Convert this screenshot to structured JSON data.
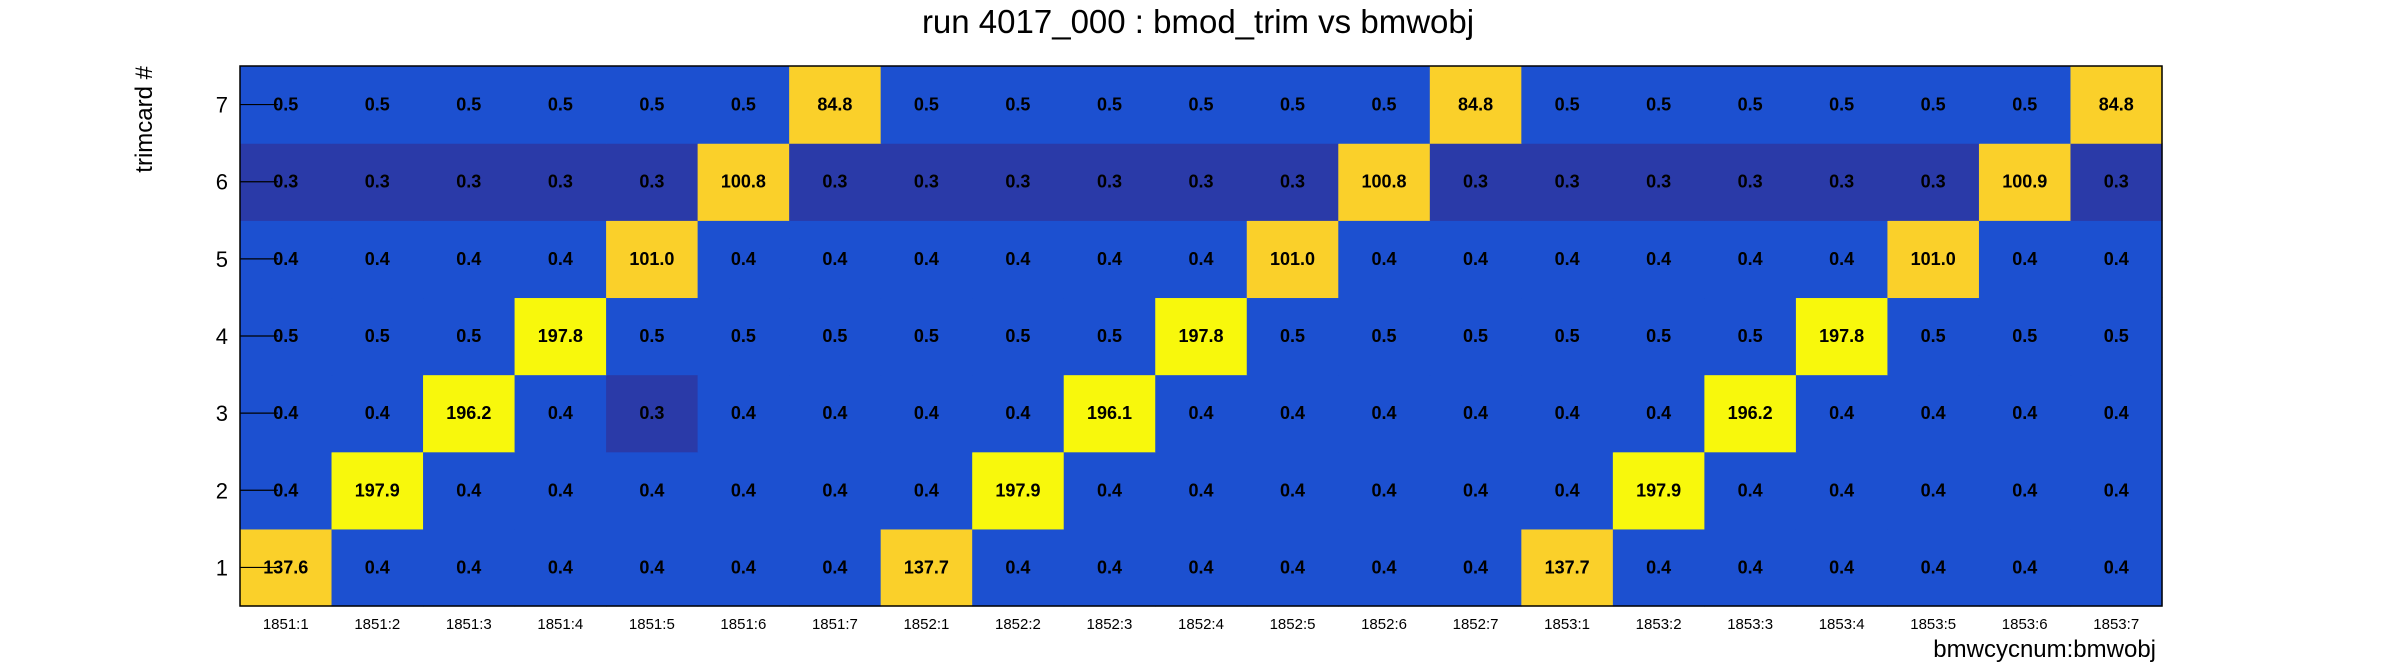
{
  "chart_data": {
    "type": "heatmap",
    "title": "run 4017_000 : bmod_trim vs bmwobj",
    "xlabel": "bmwcycnum:bmwobj",
    "ylabel": "trimcard #",
    "x_categories": [
      "1851:1",
      "1851:2",
      "1851:3",
      "1851:4",
      "1851:5",
      "1851:6",
      "1851:7",
      "1852:1",
      "1852:2",
      "1852:3",
      "1852:4",
      "1852:5",
      "1852:6",
      "1852:7",
      "1853:1",
      "1853:2",
      "1853:3",
      "1853:4",
      "1853:5",
      "1853:6",
      "1853:7"
    ],
    "y_categories": [
      "1",
      "2",
      "3",
      "4",
      "5",
      "6",
      "7"
    ],
    "values": [
      [
        137.6,
        0.4,
        0.4,
        0.4,
        0.4,
        0.4,
        0.4,
        137.7,
        0.4,
        0.4,
        0.4,
        0.4,
        0.4,
        0.4,
        137.7,
        0.4,
        0.4,
        0.4,
        0.4,
        0.4,
        0.4
      ],
      [
        0.4,
        197.9,
        0.4,
        0.4,
        0.4,
        0.4,
        0.4,
        0.4,
        197.9,
        0.4,
        0.4,
        0.4,
        0.4,
        0.4,
        0.4,
        197.9,
        0.4,
        0.4,
        0.4,
        0.4,
        0.4
      ],
      [
        0.4,
        0.4,
        196.2,
        0.4,
        0.3,
        0.4,
        0.4,
        0.4,
        0.4,
        196.1,
        0.4,
        0.4,
        0.4,
        0.4,
        0.4,
        0.4,
        196.2,
        0.4,
        0.4,
        0.4,
        0.4
      ],
      [
        0.5,
        0.5,
        0.5,
        197.8,
        0.5,
        0.5,
        0.5,
        0.5,
        0.5,
        0.5,
        197.8,
        0.5,
        0.5,
        0.5,
        0.5,
        0.5,
        0.5,
        197.8,
        0.5,
        0.5,
        0.5
      ],
      [
        0.4,
        0.4,
        0.4,
        0.4,
        101.0,
        0.4,
        0.4,
        0.4,
        0.4,
        0.4,
        0.4,
        101.0,
        0.4,
        0.4,
        0.4,
        0.4,
        0.4,
        0.4,
        101.0,
        0.4,
        0.4
      ],
      [
        0.3,
        0.3,
        0.3,
        0.3,
        0.3,
        100.8,
        0.3,
        0.3,
        0.3,
        0.3,
        0.3,
        0.3,
        100.8,
        0.3,
        0.3,
        0.3,
        0.3,
        0.3,
        0.3,
        100.9,
        0.3
      ],
      [
        0.5,
        0.5,
        0.5,
        0.5,
        0.5,
        0.5,
        84.8,
        0.5,
        0.5,
        0.5,
        0.5,
        0.5,
        0.5,
        84.8,
        0.5,
        0.5,
        0.5,
        0.5,
        0.5,
        0.5,
        84.8
      ]
    ],
    "cell_labels": [
      [
        "137.6",
        "0.4",
        "0.4",
        "0.4",
        "0.4",
        "0.4",
        "0.4",
        "137.7",
        "0.4",
        "0.4",
        "0.4",
        "0.4",
        "0.4",
        "0.4",
        "137.7",
        "0.4",
        "0.4",
        "0.4",
        "0.4",
        "0.4",
        "0.4"
      ],
      [
        "0.4",
        "197.9",
        "0.4",
        "0.4",
        "0.4",
        "0.4",
        "0.4",
        "0.4",
        "197.9",
        "0.4",
        "0.4",
        "0.4",
        "0.4",
        "0.4",
        "0.4",
        "197.9",
        "0.4",
        "0.4",
        "0.4",
        "0.4",
        "0.4"
      ],
      [
        "0.4",
        "0.4",
        "196.2",
        "0.4",
        "0.3",
        "0.4",
        "0.4",
        "0.4",
        "0.4",
        "196.1",
        "0.4",
        "0.4",
        "0.4",
        "0.4",
        "0.4",
        "0.4",
        "196.2",
        "0.4",
        "0.4",
        "0.4",
        "0.4"
      ],
      [
        "0.5",
        "0.5",
        "0.5",
        "197.8",
        "0.5",
        "0.5",
        "0.5",
        "0.5",
        "0.5",
        "0.5",
        "197.8",
        "0.5",
        "0.5",
        "0.5",
        "0.5",
        "0.5",
        "0.5",
        "197.8",
        "0.5",
        "0.5",
        "0.5"
      ],
      [
        "0.4",
        "0.4",
        "0.4",
        "0.4",
        "101.0",
        "0.4",
        "0.4",
        "0.4",
        "0.4",
        "0.4",
        "0.4",
        "101.0",
        "0.4",
        "0.4",
        "0.4",
        "0.4",
        "0.4",
        "0.4",
        "101.0",
        "0.4",
        "0.4"
      ],
      [
        "0.3",
        "0.3",
        "0.3",
        "0.3",
        "0.3",
        "100.8",
        "0.3",
        "0.3",
        "0.3",
        "0.3",
        "0.3",
        "0.3",
        "100.8",
        "0.3",
        "0.3",
        "0.3",
        "0.3",
        "0.3",
        "0.3",
        "100.9",
        "0.3"
      ],
      [
        "0.5",
        "0.5",
        "0.5",
        "0.5",
        "0.5",
        "0.5",
        "84.8",
        "0.5",
        "0.5",
        "0.5",
        "0.5",
        "0.5",
        "0.5",
        "84.8",
        "0.5",
        "0.5",
        "0.5",
        "0.5",
        "0.5",
        "0.5",
        "84.8"
      ]
    ],
    "palette": {
      "low_dark": "#2a3aa8",
      "low": "#1c50d0",
      "mid": "#fad02a",
      "high": "#f8f80c",
      "frame": "#000000",
      "background": "#ffffff"
    },
    "grid": false,
    "legend": "none"
  }
}
